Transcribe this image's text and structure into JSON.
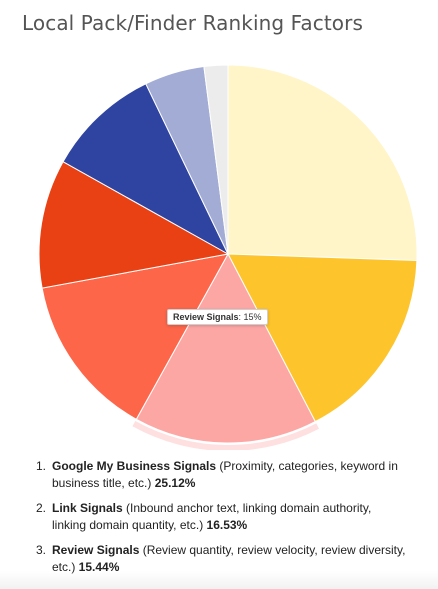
{
  "chart_data": {
    "type": "pie",
    "title": "Local Pack/Finder Ranking Factors",
    "slices": [
      {
        "value": 25.12,
        "color": "#fff5c8"
      },
      {
        "value": 16.53,
        "color": "#fec42c"
      },
      {
        "value": 15.44,
        "color": "#fda7a5"
      },
      {
        "value": 13.82,
        "color": "#fe664a"
      },
      {
        "value": 10.82,
        "color": "#e94113"
      },
      {
        "value": 9.56,
        "color": "#2f43a0"
      },
      {
        "value": 5.04,
        "color": "#a2acd5"
      },
      {
        "value": 2.0,
        "color": "#ececec"
      }
    ],
    "highlighted_slice_index": 2,
    "tooltip": {
      "name": "Review Signals",
      "value": "15%"
    }
  },
  "list": [
    {
      "number": "1.",
      "name": "Google My Business Signals",
      "desc": " (Proximity, categories, keyword in business title, etc.) ",
      "pct": "25.12%"
    },
    {
      "number": "2.",
      "name": "Link Signals",
      "desc": " (Inbound anchor text, linking domain authority, linking domain quantity, etc.) ",
      "pct": "16.53%"
    },
    {
      "number": "3.",
      "name": "Review Signals",
      "desc": " (Review quantity, review velocity, review diversity, etc.) ",
      "pct": "15.44%"
    }
  ]
}
